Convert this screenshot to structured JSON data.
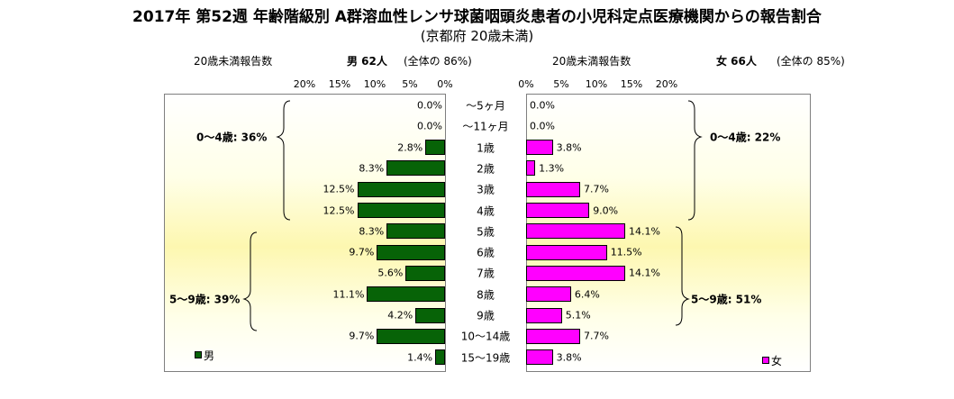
{
  "chart_data": {
    "type": "bar",
    "title": "2017年 第52週 年齢階級別 A群溶血性レンサ球菌咽頭炎患者の小児科定点医療機関からの報告割合",
    "subtitle": "(京都府 20歳未満)",
    "categories": [
      "〜5ヶ月",
      "〜11ヶ月",
      "1歳",
      "2歳",
      "3歳",
      "4歳",
      "5歳",
      "6歳",
      "7歳",
      "8歳",
      "9歳",
      "10〜14歳",
      "15〜19歳"
    ],
    "male": {
      "header_label": "20歳未満報告数",
      "summary": "男 62人",
      "share": "(全体の 86%)",
      "legend": "男",
      "color": "#076307",
      "values": [
        0.0,
        0.0,
        2.8,
        8.3,
        12.5,
        12.5,
        8.3,
        9.7,
        5.6,
        11.1,
        4.2,
        9.7,
        1.4
      ],
      "labels": [
        "0.0%",
        "0.0%",
        "2.8%",
        "8.3%",
        "12.5%",
        "12.5%",
        "8.3%",
        "9.7%",
        "5.6%",
        "11.1%",
        "4.2%",
        "9.7%",
        "1.4%"
      ],
      "group_labels": [
        "0〜4歳: 36%",
        "5〜9歳: 39%"
      ]
    },
    "female": {
      "header_label": "20歳未満報告数",
      "summary": "女 66人",
      "share": "(全体の 85%)",
      "legend": "女",
      "color": "#ff00ff",
      "values": [
        0.0,
        0.0,
        3.8,
        1.3,
        7.7,
        9.0,
        14.1,
        11.5,
        14.1,
        6.4,
        5.1,
        7.7,
        3.8
      ],
      "labels": [
        "0.0%",
        "0.0%",
        "3.8%",
        "1.3%",
        "7.7%",
        "9.0%",
        "14.1%",
        "11.5%",
        "14.1%",
        "6.4%",
        "5.1%",
        "7.7%",
        "3.8%"
      ],
      "group_labels": [
        "0〜4歳: 22%",
        "5〜9歳: 51%"
      ]
    },
    "x_ticks": [
      "0%",
      "5%",
      "10%",
      "15%",
      "20%"
    ],
    "xlim": [
      0,
      20
    ],
    "grid": false
  }
}
